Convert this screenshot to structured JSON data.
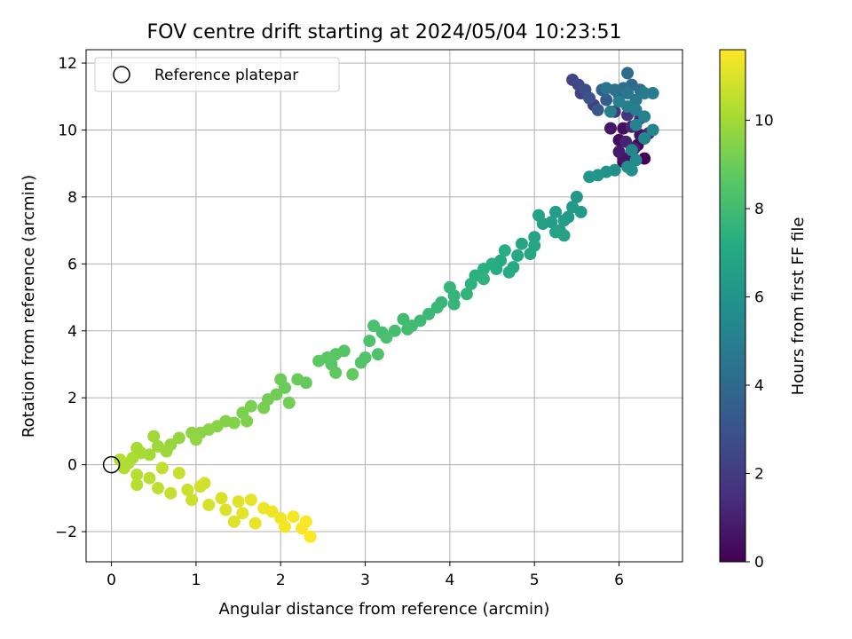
{
  "chart_data": {
    "type": "scatter",
    "title": "FOV centre drift starting at 2024/05/04 10:23:51",
    "xlabel": "Angular distance from reference (arcmin)",
    "ylabel": "Rotation from reference (arcmin)",
    "xlim": [
      -0.3,
      6.75
    ],
    "ylim": [
      -2.9,
      12.4
    ],
    "xticks": [
      "0",
      "1",
      "2",
      "3",
      "4",
      "5",
      "6"
    ],
    "yticks": [
      "−2",
      "0",
      "2",
      "4",
      "6",
      "8",
      "10",
      "12"
    ],
    "grid": true,
    "legend": {
      "position": "upper-left",
      "entries": [
        "Reference platepar"
      ]
    },
    "reference_point": {
      "x": 0,
      "y": 0
    },
    "colorbar": {
      "label": "Hours from first FF file",
      "range": [
        0,
        11.6
      ],
      "ticks": [
        "0",
        "2",
        "4",
        "6",
        "8",
        "10"
      ],
      "colormap": "viridis"
    },
    "points": [
      {
        "x": 6.3,
        "y": 9.15,
        "h": 0.0
      },
      {
        "x": 6.22,
        "y": 9.55,
        "h": 0.1
      },
      {
        "x": 6.05,
        "y": 9.05,
        "h": 0.15
      },
      {
        "x": 6.15,
        "y": 9.35,
        "h": 0.2
      },
      {
        "x": 6.0,
        "y": 9.7,
        "h": 0.3
      },
      {
        "x": 6.12,
        "y": 9.0,
        "h": 0.35
      },
      {
        "x": 6.05,
        "y": 10.05,
        "h": 0.4
      },
      {
        "x": 6.25,
        "y": 9.85,
        "h": 0.5
      },
      {
        "x": 6.05,
        "y": 9.15,
        "h": 0.6
      },
      {
        "x": 5.9,
        "y": 10.05,
        "h": 0.7
      },
      {
        "x": 6.0,
        "y": 9.35,
        "h": 0.8
      },
      {
        "x": 6.18,
        "y": 9.45,
        "h": 0.9
      },
      {
        "x": 6.3,
        "y": 9.75,
        "h": 1.0
      },
      {
        "x": 6.08,
        "y": 9.65,
        "h": 1.1
      },
      {
        "x": 6.15,
        "y": 10.1,
        "h": 1.2
      },
      {
        "x": 6.35,
        "y": 9.9,
        "h": 1.3
      },
      {
        "x": 6.25,
        "y": 10.35,
        "h": 1.4
      },
      {
        "x": 6.1,
        "y": 10.45,
        "h": 1.6
      },
      {
        "x": 5.95,
        "y": 10.55,
        "h": 1.8
      },
      {
        "x": 5.7,
        "y": 10.75,
        "h": 2.0
      },
      {
        "x": 5.55,
        "y": 11.1,
        "h": 2.2
      },
      {
        "x": 5.45,
        "y": 11.5,
        "h": 2.4
      },
      {
        "x": 5.52,
        "y": 11.35,
        "h": 2.6
      },
      {
        "x": 5.6,
        "y": 11.2,
        "h": 2.8
      },
      {
        "x": 5.65,
        "y": 10.95,
        "h": 3.0
      },
      {
        "x": 5.75,
        "y": 10.6,
        "h": 3.2
      },
      {
        "x": 5.85,
        "y": 10.9,
        "h": 3.4
      },
      {
        "x": 5.8,
        "y": 11.2,
        "h": 3.6
      },
      {
        "x": 6.0,
        "y": 11.05,
        "h": 3.8
      },
      {
        "x": 6.15,
        "y": 11.35,
        "h": 4.0
      },
      {
        "x": 6.1,
        "y": 11.7,
        "h": 4.1
      },
      {
        "x": 6.25,
        "y": 11.2,
        "h": 4.2
      },
      {
        "x": 6.05,
        "y": 11.25,
        "h": 4.3
      },
      {
        "x": 5.95,
        "y": 11.2,
        "h": 4.4
      },
      {
        "x": 5.85,
        "y": 11.25,
        "h": 4.5
      },
      {
        "x": 6.1,
        "y": 11.1,
        "h": 4.6
      },
      {
        "x": 6.2,
        "y": 10.9,
        "h": 4.7
      },
      {
        "x": 6.3,
        "y": 11.1,
        "h": 4.8
      },
      {
        "x": 6.4,
        "y": 11.1,
        "h": 4.85
      },
      {
        "x": 6.2,
        "y": 10.6,
        "h": 4.9
      },
      {
        "x": 6.1,
        "y": 10.7,
        "h": 5.0
      },
      {
        "x": 6.0,
        "y": 10.85,
        "h": 5.05
      },
      {
        "x": 5.9,
        "y": 10.55,
        "h": 5.1
      },
      {
        "x": 6.3,
        "y": 10.4,
        "h": 5.15
      },
      {
        "x": 6.2,
        "y": 10.15,
        "h": 5.2
      },
      {
        "x": 6.4,
        "y": 10.0,
        "h": 5.25
      },
      {
        "x": 6.3,
        "y": 9.75,
        "h": 5.3
      },
      {
        "x": 6.15,
        "y": 9.4,
        "h": 5.4
      },
      {
        "x": 6.2,
        "y": 9.1,
        "h": 5.5
      },
      {
        "x": 6.1,
        "y": 8.9,
        "h": 5.6
      },
      {
        "x": 6.15,
        "y": 8.8,
        "h": 5.7
      },
      {
        "x": 5.95,
        "y": 8.8,
        "h": 5.8
      },
      {
        "x": 5.85,
        "y": 8.75,
        "h": 5.9
      },
      {
        "x": 5.75,
        "y": 8.65,
        "h": 6.0
      },
      {
        "x": 5.65,
        "y": 8.6,
        "h": 6.1
      },
      {
        "x": 5.5,
        "y": 8.0,
        "h": 6.2
      },
      {
        "x": 5.45,
        "y": 7.7,
        "h": 6.25
      },
      {
        "x": 5.4,
        "y": 7.4,
        "h": 6.3
      },
      {
        "x": 5.55,
        "y": 7.55,
        "h": 6.35
      },
      {
        "x": 5.35,
        "y": 7.3,
        "h": 6.4
      },
      {
        "x": 5.25,
        "y": 7.55,
        "h": 6.45
      },
      {
        "x": 5.2,
        "y": 7.25,
        "h": 6.5
      },
      {
        "x": 5.3,
        "y": 7.0,
        "h": 6.55
      },
      {
        "x": 5.1,
        "y": 7.2,
        "h": 6.6
      },
      {
        "x": 5.05,
        "y": 7.45,
        "h": 6.65
      },
      {
        "x": 5.35,
        "y": 6.85,
        "h": 6.7
      },
      {
        "x": 5.25,
        "y": 6.95,
        "h": 6.75
      },
      {
        "x": 5.0,
        "y": 6.8,
        "h": 6.8
      },
      {
        "x": 4.85,
        "y": 6.6,
        "h": 6.85
      },
      {
        "x": 5.0,
        "y": 6.55,
        "h": 6.9
      },
      {
        "x": 4.95,
        "y": 6.3,
        "h": 6.95
      },
      {
        "x": 4.8,
        "y": 6.25,
        "h": 7.0
      },
      {
        "x": 4.75,
        "y": 5.9,
        "h": 7.05
      },
      {
        "x": 4.6,
        "y": 6.1,
        "h": 7.1
      },
      {
        "x": 4.7,
        "y": 5.75,
        "h": 7.15
      },
      {
        "x": 4.55,
        "y": 5.85,
        "h": 7.2
      },
      {
        "x": 4.5,
        "y": 6.0,
        "h": 7.25
      },
      {
        "x": 4.65,
        "y": 6.4,
        "h": 7.3
      },
      {
        "x": 4.4,
        "y": 5.85,
        "h": 7.35
      },
      {
        "x": 4.3,
        "y": 5.65,
        "h": 7.4
      },
      {
        "x": 4.25,
        "y": 5.4,
        "h": 7.45
      },
      {
        "x": 4.4,
        "y": 5.55,
        "h": 7.5
      },
      {
        "x": 4.2,
        "y": 5.1,
        "h": 7.55
      },
      {
        "x": 4.05,
        "y": 5.05,
        "h": 7.6
      },
      {
        "x": 4.0,
        "y": 5.3,
        "h": 7.65
      },
      {
        "x": 4.05,
        "y": 4.8,
        "h": 7.7
      },
      {
        "x": 3.9,
        "y": 4.85,
        "h": 7.75
      },
      {
        "x": 3.85,
        "y": 4.7,
        "h": 7.8
      },
      {
        "x": 3.75,
        "y": 4.5,
        "h": 7.85
      },
      {
        "x": 3.65,
        "y": 4.3,
        "h": 7.9
      },
      {
        "x": 3.55,
        "y": 4.15,
        "h": 7.95
      },
      {
        "x": 3.45,
        "y": 4.35,
        "h": 8.0
      },
      {
        "x": 3.5,
        "y": 4.05,
        "h": 8.05
      },
      {
        "x": 3.35,
        "y": 4.0,
        "h": 8.1
      },
      {
        "x": 3.2,
        "y": 3.95,
        "h": 8.15
      },
      {
        "x": 3.25,
        "y": 3.8,
        "h": 8.2
      },
      {
        "x": 3.1,
        "y": 4.15,
        "h": 8.25
      },
      {
        "x": 3.05,
        "y": 3.7,
        "h": 8.3
      },
      {
        "x": 3.15,
        "y": 3.3,
        "h": 8.35
      },
      {
        "x": 3.0,
        "y": 3.2,
        "h": 8.4
      },
      {
        "x": 2.95,
        "y": 3.05,
        "h": 8.45
      },
      {
        "x": 2.75,
        "y": 3.4,
        "h": 8.5
      },
      {
        "x": 2.65,
        "y": 3.3,
        "h": 8.55
      },
      {
        "x": 2.6,
        "y": 3.0,
        "h": 8.6
      },
      {
        "x": 2.55,
        "y": 3.2,
        "h": 8.65
      },
      {
        "x": 2.45,
        "y": 3.1,
        "h": 8.7
      },
      {
        "x": 2.65,
        "y": 2.75,
        "h": 8.75
      },
      {
        "x": 2.85,
        "y": 2.7,
        "h": 8.8
      },
      {
        "x": 2.3,
        "y": 2.45,
        "h": 8.85
      },
      {
        "x": 2.2,
        "y": 2.55,
        "h": 8.9
      },
      {
        "x": 2.05,
        "y": 2.3,
        "h": 8.95
      },
      {
        "x": 2.0,
        "y": 2.55,
        "h": 9.0
      },
      {
        "x": 1.95,
        "y": 2.1,
        "h": 9.05
      },
      {
        "x": 2.1,
        "y": 1.85,
        "h": 9.1
      },
      {
        "x": 1.85,
        "y": 1.95,
        "h": 9.15
      },
      {
        "x": 1.8,
        "y": 1.7,
        "h": 9.2
      },
      {
        "x": 1.65,
        "y": 1.75,
        "h": 9.25
      },
      {
        "x": 1.55,
        "y": 1.55,
        "h": 9.3
      },
      {
        "x": 1.6,
        "y": 1.3,
        "h": 9.35
      },
      {
        "x": 1.45,
        "y": 1.25,
        "h": 9.4
      },
      {
        "x": 1.35,
        "y": 1.3,
        "h": 9.45
      },
      {
        "x": 1.25,
        "y": 1.15,
        "h": 9.5
      },
      {
        "x": 1.15,
        "y": 1.05,
        "h": 9.55
      },
      {
        "x": 1.05,
        "y": 0.95,
        "h": 9.6
      },
      {
        "x": 0.95,
        "y": 0.95,
        "h": 9.65
      },
      {
        "x": 1.0,
        "y": 0.75,
        "h": 9.7
      },
      {
        "x": 0.8,
        "y": 0.8,
        "h": 9.75
      },
      {
        "x": 0.7,
        "y": 0.6,
        "h": 9.8
      },
      {
        "x": 0.65,
        "y": 0.4,
        "h": 9.85
      },
      {
        "x": 0.55,
        "y": 0.55,
        "h": 9.9
      },
      {
        "x": 0.5,
        "y": 0.85,
        "h": 9.95
      },
      {
        "x": 0.45,
        "y": 0.3,
        "h": 10.0
      },
      {
        "x": 0.35,
        "y": 0.35,
        "h": 10.05
      },
      {
        "x": 0.3,
        "y": 0.5,
        "h": 10.1
      },
      {
        "x": 0.25,
        "y": 0.2,
        "h": 10.15
      },
      {
        "x": 0.2,
        "y": 0.05,
        "h": 10.2
      },
      {
        "x": 0.15,
        "y": -0.1,
        "h": 10.25
      },
      {
        "x": 0.1,
        "y": 0.15,
        "h": 10.3
      },
      {
        "x": 0.3,
        "y": -0.3,
        "h": 10.35
      },
      {
        "x": 0.3,
        "y": -0.6,
        "h": 10.4
      },
      {
        "x": 0.45,
        "y": -0.4,
        "h": 10.45
      },
      {
        "x": 0.55,
        "y": -0.7,
        "h": 10.5
      },
      {
        "x": 0.6,
        "y": -0.1,
        "h": 10.55
      },
      {
        "x": 0.7,
        "y": -0.85,
        "h": 10.6
      },
      {
        "x": 0.8,
        "y": -0.25,
        "h": 10.65
      },
      {
        "x": 0.9,
        "y": -0.75,
        "h": 10.7
      },
      {
        "x": 0.95,
        "y": -1.05,
        "h": 10.75
      },
      {
        "x": 1.05,
        "y": -0.65,
        "h": 10.8
      },
      {
        "x": 1.1,
        "y": -0.55,
        "h": 10.85
      },
      {
        "x": 1.15,
        "y": -1.2,
        "h": 10.9
      },
      {
        "x": 1.3,
        "y": -1.0,
        "h": 10.95
      },
      {
        "x": 1.35,
        "y": -1.35,
        "h": 11.0
      },
      {
        "x": 1.45,
        "y": -1.7,
        "h": 11.05
      },
      {
        "x": 1.5,
        "y": -1.1,
        "h": 11.1
      },
      {
        "x": 1.55,
        "y": -1.45,
        "h": 11.15
      },
      {
        "x": 1.65,
        "y": -1.05,
        "h": 11.2
      },
      {
        "x": 1.7,
        "y": -1.75,
        "h": 11.25
      },
      {
        "x": 1.8,
        "y": -1.3,
        "h": 11.3
      },
      {
        "x": 1.9,
        "y": -1.4,
        "h": 11.35
      },
      {
        "x": 2.0,
        "y": -1.6,
        "h": 11.4
      },
      {
        "x": 2.05,
        "y": -1.85,
        "h": 11.45
      },
      {
        "x": 2.15,
        "y": -1.55,
        "h": 11.5
      },
      {
        "x": 2.25,
        "y": -1.9,
        "h": 11.52
      },
      {
        "x": 2.3,
        "y": -1.7,
        "h": 11.55
      },
      {
        "x": 2.35,
        "y": -2.15,
        "h": 11.58
      }
    ]
  }
}
